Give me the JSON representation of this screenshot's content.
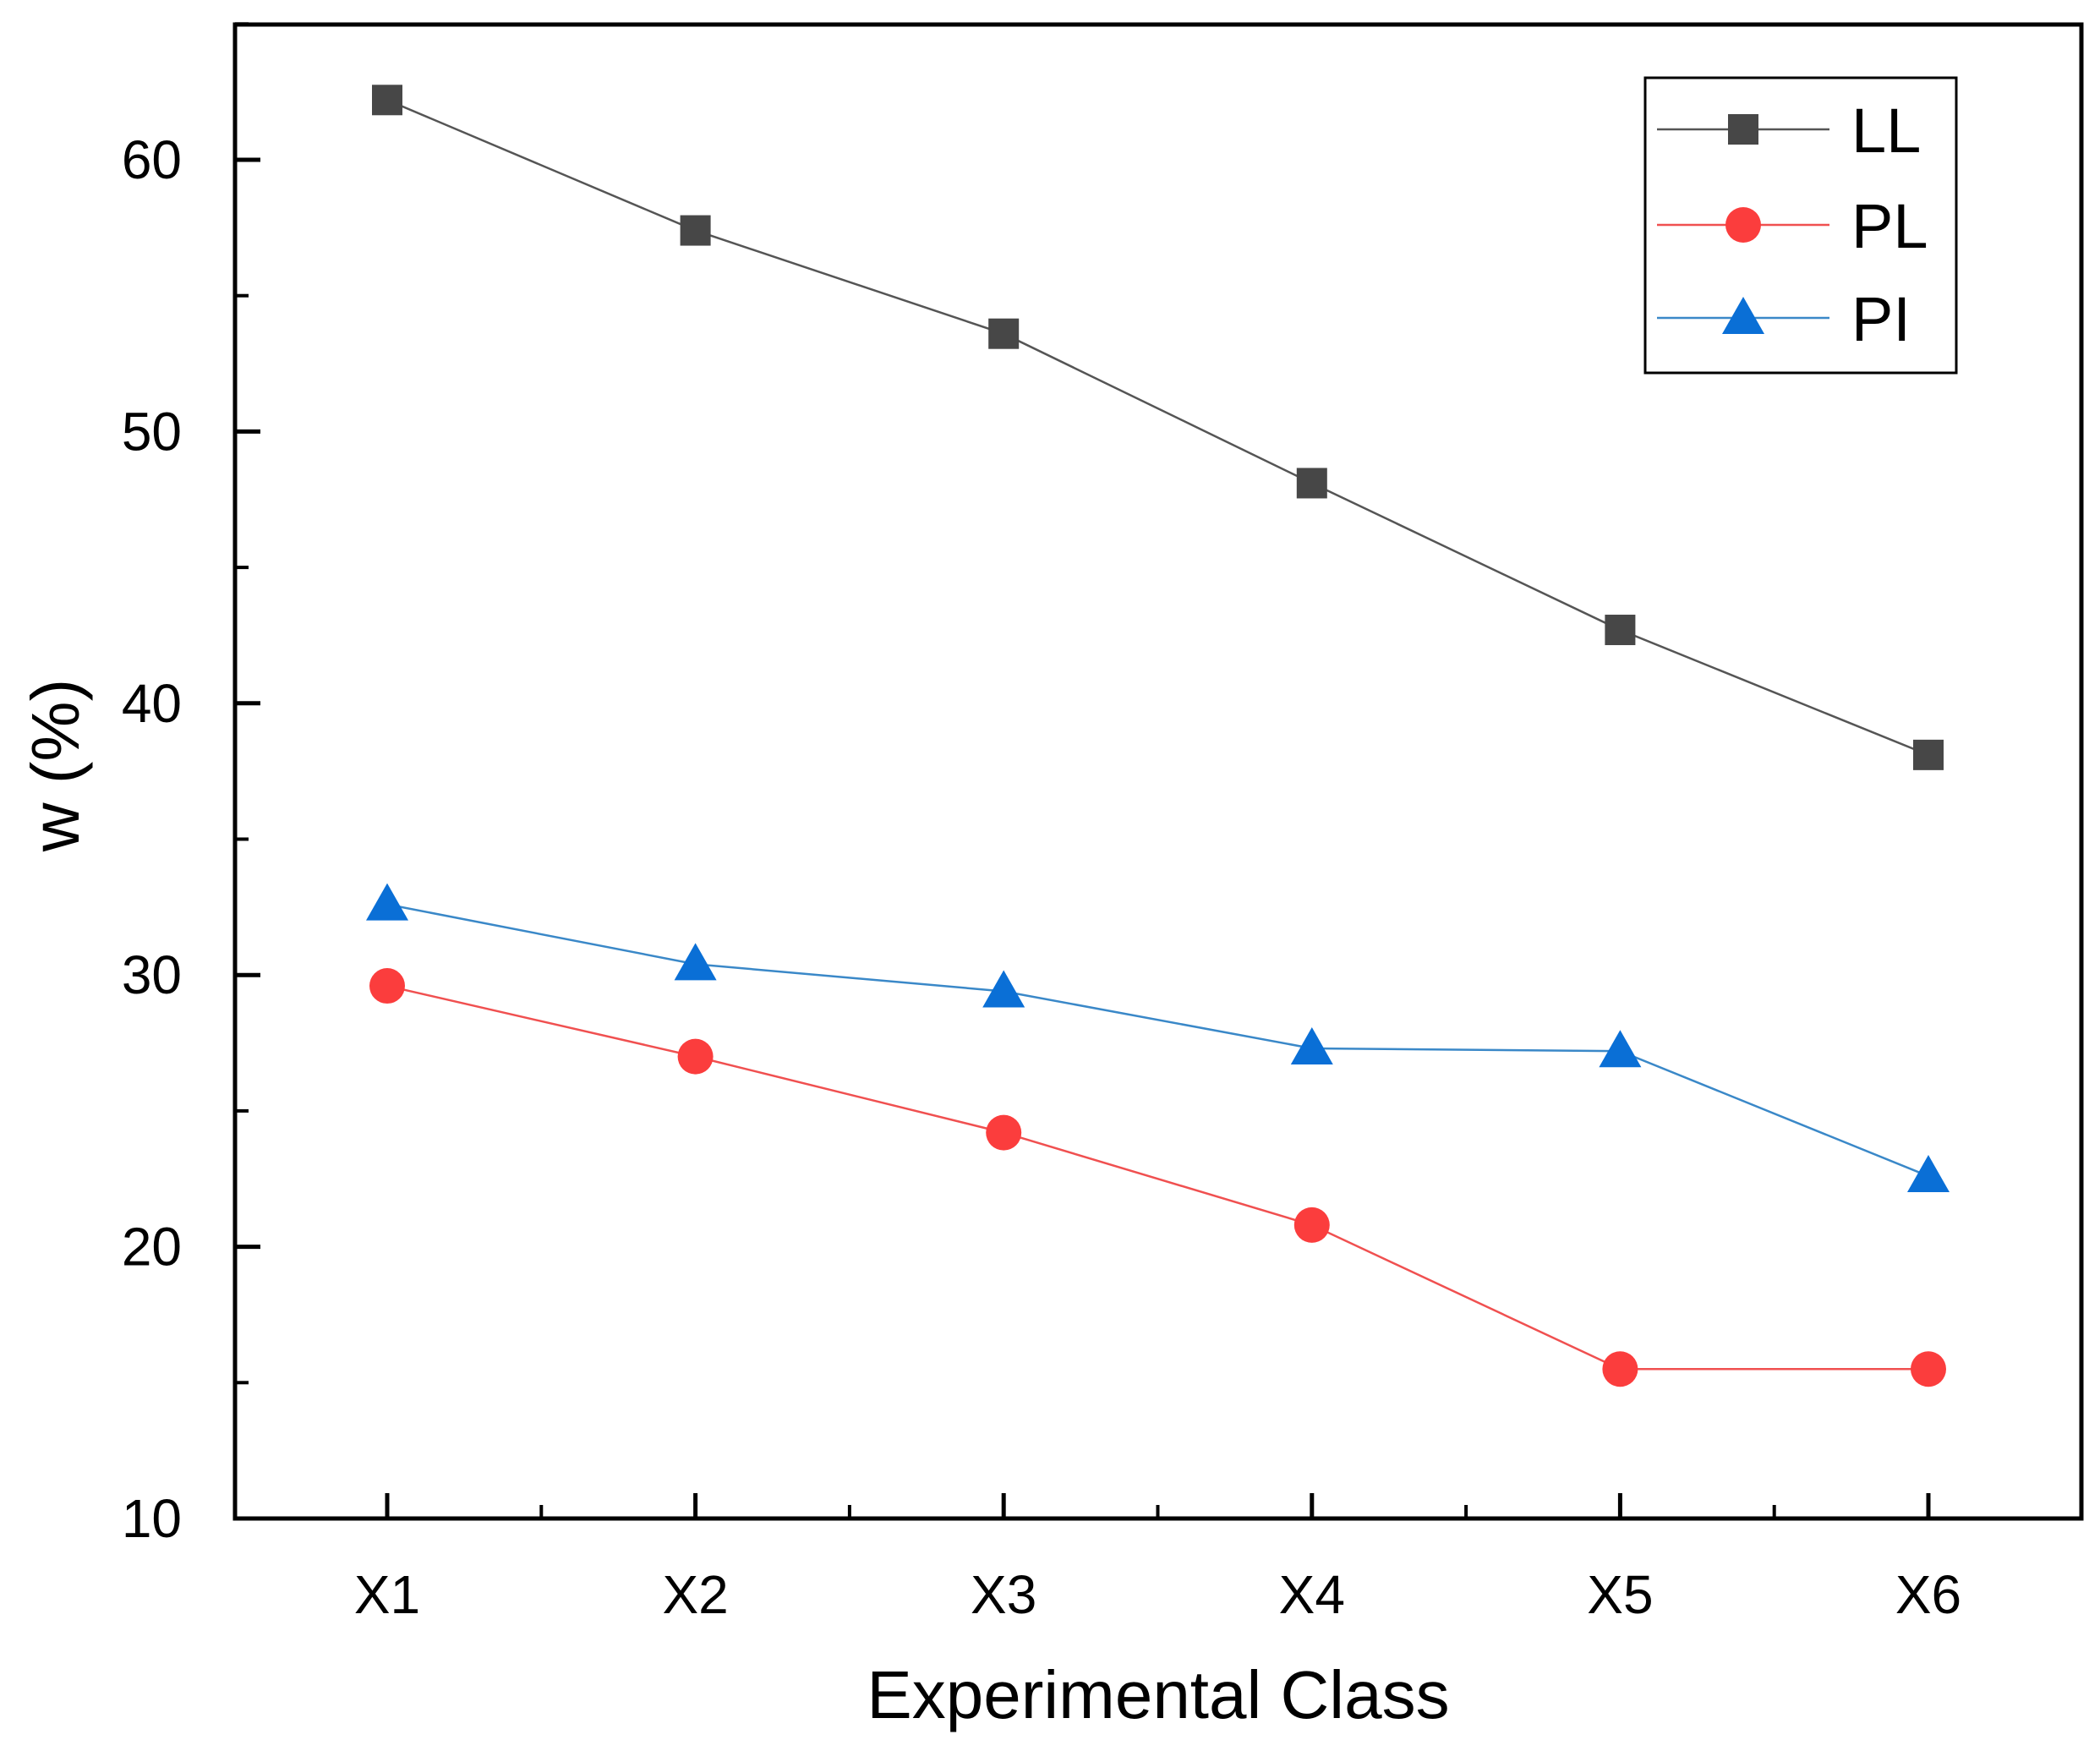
{
  "chart_data": {
    "type": "line",
    "title": "",
    "xlabel": "Experimental Class",
    "ylabel": "w (%)",
    "categories": [
      "X1",
      "X2",
      "X3",
      "X4",
      "X5",
      "X6"
    ],
    "ylim": [
      10,
      65
    ],
    "yticks": [
      10,
      20,
      30,
      40,
      50,
      60
    ],
    "legend_position": "top-right",
    "series": [
      {
        "name": "LL",
        "marker": "square",
        "color": "#474747",
        "line_color": "#555555",
        "values": [
          62.2,
          57.4,
          53.6,
          48.1,
          42.7,
          38.1
        ]
      },
      {
        "name": "PL",
        "marker": "circle",
        "color": "#fb3d3d",
        "line_color": "#f05050",
        "values": [
          29.6,
          27.0,
          24.2,
          20.8,
          15.5,
          15.5
        ]
      },
      {
        "name": "PI",
        "marker": "triangle",
        "color": "#0a6fd6",
        "line_color": "#3a88c8",
        "values": [
          32.6,
          30.4,
          29.4,
          27.3,
          27.2,
          22.6
        ]
      }
    ]
  }
}
